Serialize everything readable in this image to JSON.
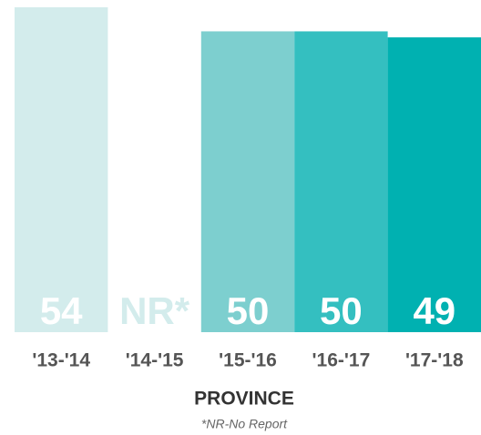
{
  "chart_data": {
    "type": "bar",
    "title": "PROVINCE",
    "footnote": "*NR-No Report",
    "categories": [
      "'13-'14",
      "'14-'15",
      "'15-'16",
      "'16-'17",
      "'17-'18"
    ],
    "values": [
      54,
      null,
      50,
      50,
      49
    ],
    "value_labels": [
      "54",
      "NR*",
      "50",
      "50",
      "49"
    ],
    "colors": [
      "#d3ecec",
      "#d3ecec",
      "#7dcfcf",
      "#34bfc0",
      "#00b1b1"
    ],
    "ylim": [
      0,
      54
    ],
    "grid": false
  }
}
